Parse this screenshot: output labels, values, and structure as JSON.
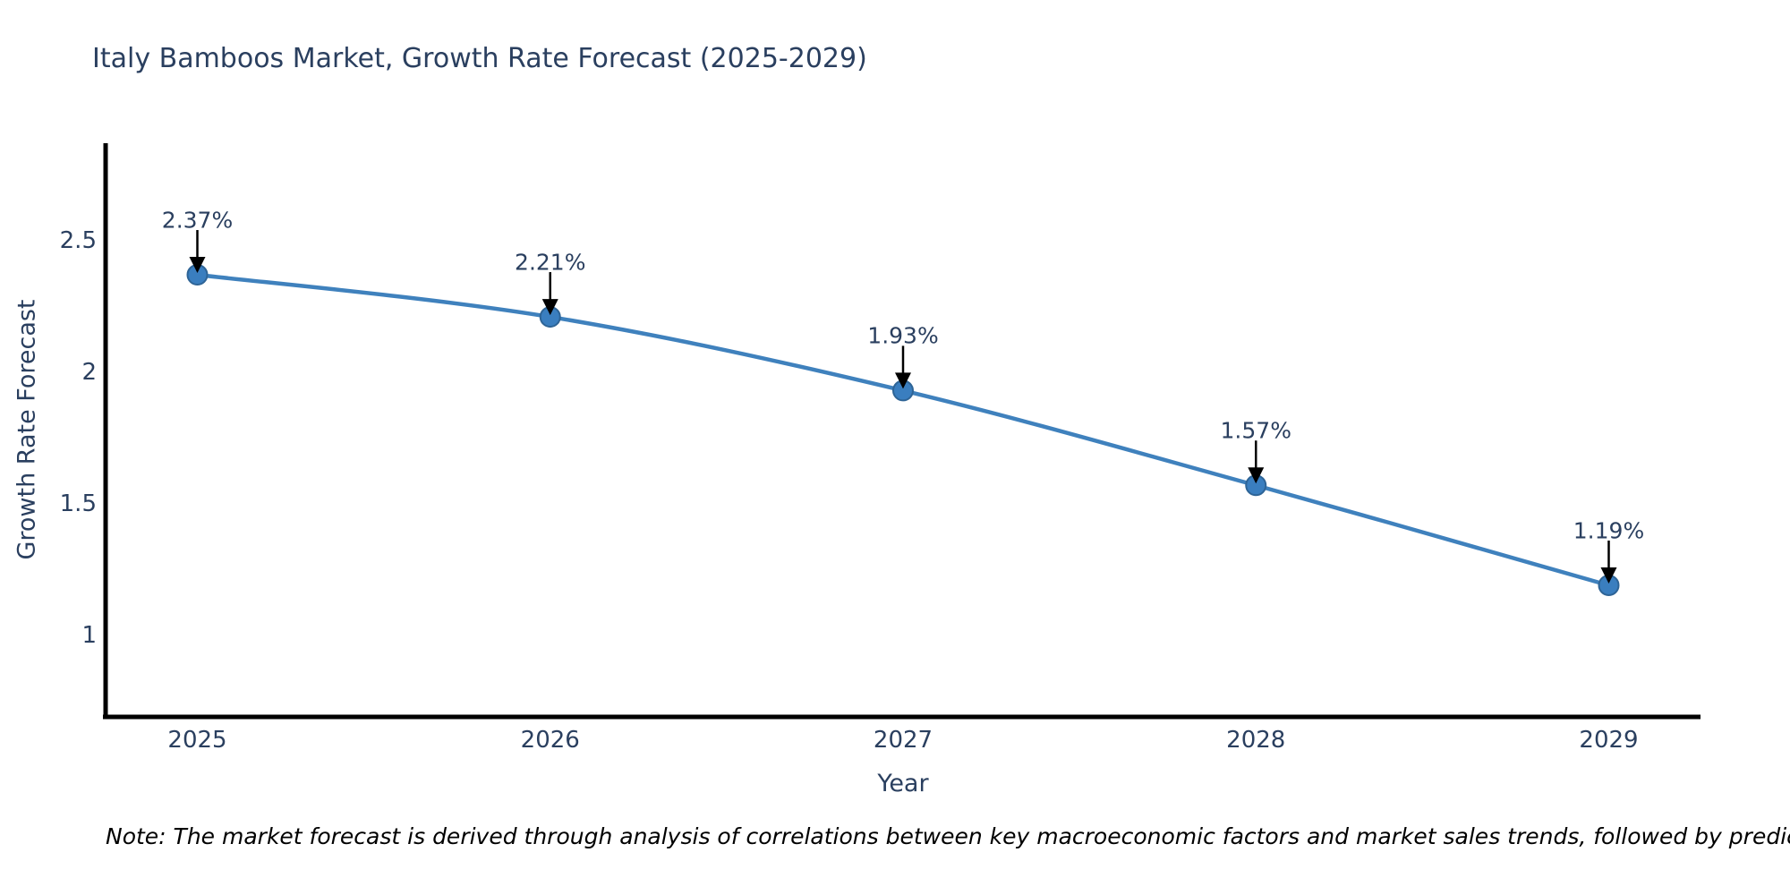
{
  "title": "Italy Bamboos Market, Growth Rate Forecast (2025-2029)",
  "note": "Note: The market forecast is derived through analysis of correlations between key macroeconomic factors and market sales trends, followed by predictive modeling to project future sales",
  "chart_data": {
    "type": "line",
    "title": "Italy Bamboos Market, Growth Rate Forecast (2025-2029)",
    "xlabel": "Year",
    "ylabel": "Growth Rate Forecast",
    "categories": [
      2025,
      2026,
      2027,
      2028,
      2029
    ],
    "values": [
      2.37,
      2.21,
      1.93,
      1.57,
      1.19
    ],
    "point_labels": [
      "2.37%",
      "2.21%",
      "1.93%",
      "1.57%",
      "1.19%"
    ],
    "yticks": [
      1,
      1.5,
      2,
      2.5
    ],
    "ytick_labels": [
      "1",
      "1.5",
      "2",
      "2.5"
    ],
    "xlim": [
      2024.74,
      2029.26
    ],
    "ylim": [
      0.69,
      2.87
    ],
    "grid": false,
    "legend": "none",
    "line_shape": "spline",
    "line_color": "#3f81bd",
    "line_width": 4.5,
    "marker_color": "#3a7ebf",
    "marker_edge_color": "#2e6496",
    "marker_radius": 11,
    "axis_color": "#000000",
    "text_color": "#2a3f5f",
    "annotation_arrow_color": "#000000"
  }
}
